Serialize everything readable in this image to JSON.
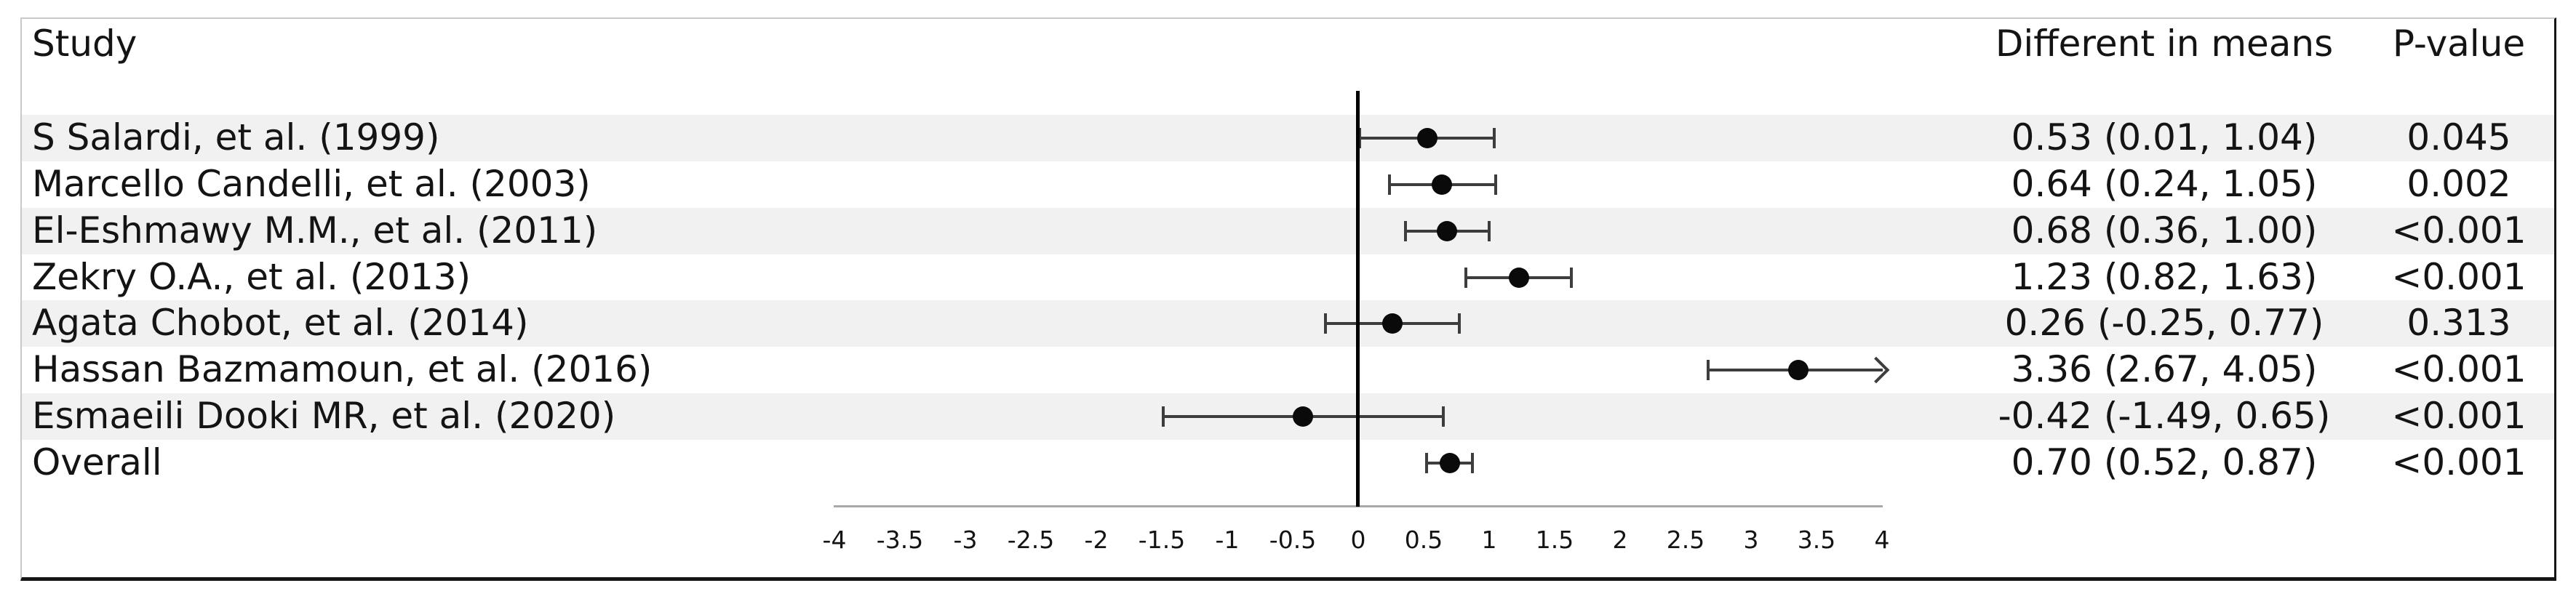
{
  "columns": {
    "study": "Study",
    "means": "Different in means",
    "pvalue": "P-value"
  },
  "chart_data": {
    "type": "scatter",
    "variant": "forest-plot",
    "title": "",
    "categories": [
      "S Salardi, et al. (1999)",
      "Marcello Candelli, et al. (2003)",
      "El-Eshmawy M.M., et al. (2011)",
      "Zekry O.A., et al. (2013)",
      "Agata Chobot, et al. (2014)",
      "Hassan Bazmamoun, et al. (2016)",
      "Esmaeili Dooki MR, et al. (2020)",
      "Overall"
    ],
    "series": [
      {
        "name": "Different in means",
        "values": [
          0.53,
          0.64,
          0.68,
          1.23,
          0.26,
          3.36,
          -0.42,
          0.7
        ],
        "ci_low": [
          0.01,
          0.24,
          0.36,
          0.82,
          -0.25,
          2.67,
          -1.49,
          0.52
        ],
        "ci_high": [
          1.04,
          1.05,
          1.0,
          1.63,
          0.77,
          4.05,
          0.65,
          0.87
        ]
      }
    ],
    "estimate_labels": [
      "0.53 (0.01, 1.04)",
      "0.64 (0.24, 1.05)",
      "0.68 (0.36, 1.00)",
      "1.23 (0.82, 1.63)",
      "0.26 (-0.25, 0.77)",
      "3.36 (2.67, 4.05)",
      "-0.42 (-1.49, 0.65)",
      "0.70 (0.52, 0.87)"
    ],
    "p_values": [
      "0.045",
      "0.002",
      "<0.001",
      "<0.001",
      "0.313",
      "<0.001",
      "<0.001",
      "<0.001"
    ],
    "xlim": [
      -4,
      4
    ],
    "xticks": [
      -4,
      -3.5,
      -3,
      -2.5,
      -2,
      -1.5,
      -1,
      -0.5,
      0,
      0.5,
      1,
      1.5,
      2,
      2.5,
      3,
      3.5,
      4
    ],
    "xtick_labels": [
      "-4",
      "-3.5",
      "-3",
      "-2.5",
      "-2",
      "-1.5",
      "-1",
      "-0.5",
      "0",
      "0.5",
      "1",
      "1.5",
      "2",
      "2.5",
      "3",
      "3.5",
      "4"
    ],
    "reference_line_x": 0,
    "grid": false,
    "legend": false,
    "marker": "filled-circle",
    "overflow_arrow_rows": [
      "Hassan Bazmamoun, et al. (2016)"
    ]
  },
  "colors": {
    "row_stripe": "#f1f1f1",
    "marker": "#0a0a0a",
    "whisker": "#3d3d3d",
    "axis_line": "#a8a8a8",
    "zero_line": "#000000",
    "frame_light": "#c9c9c9",
    "frame_dark": "#151515",
    "text": "#141414"
  }
}
